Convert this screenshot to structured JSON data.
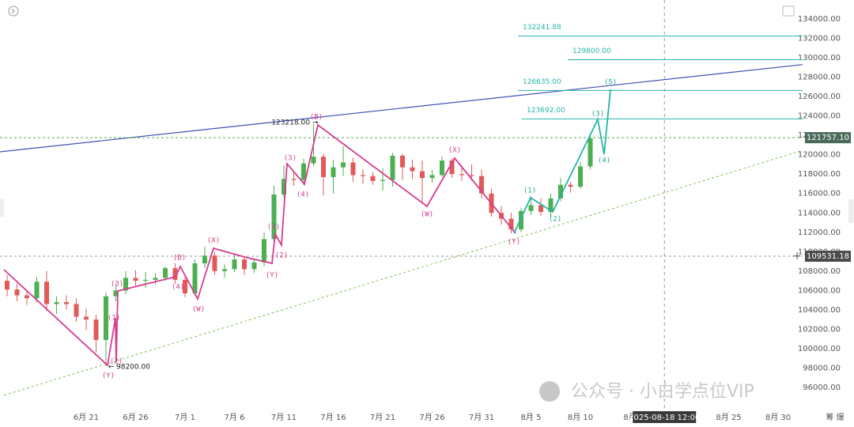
{
  "chart_data": {
    "type": "candlestick",
    "x": [
      12,
      13,
      14,
      15,
      16,
      17,
      18,
      19,
      20,
      21,
      22,
      23,
      24,
      25,
      26,
      27,
      28,
      29,
      30,
      31,
      32,
      33,
      34,
      35,
      36,
      37,
      38,
      39,
      40,
      41,
      42,
      43,
      44,
      45,
      46,
      47,
      48,
      49,
      50,
      51,
      52,
      53,
      54,
      55,
      56,
      57,
      58,
      59,
      60,
      61,
      62,
      63,
      64,
      65,
      66,
      67,
      68,
      69,
      70,
      71
    ],
    "open": [
      107000,
      106100,
      105500,
      105200,
      106900,
      104600,
      104800,
      104600,
      103300,
      103000,
      100900,
      105400,
      106000,
      107300,
      107000,
      107100,
      107300,
      108300,
      107100,
      105700,
      108800,
      109600,
      108000,
      108200,
      109200,
      108200,
      108900,
      111300,
      115900,
      117500,
      117400,
      119100,
      119800,
      117700,
      118700,
      119200,
      117900,
      117800,
      117300,
      117400,
      119900,
      118700,
      118300,
      117600,
      117900,
      119400,
      118000,
      117900,
      117800,
      116000,
      114000,
      113400,
      112300,
      114200,
      114800,
      114100,
      115500,
      116900,
      116700,
      118800
    ],
    "high": [
      107600,
      106700,
      106000,
      107400,
      108000,
      105400,
      105500,
      105200,
      104100,
      103500,
      105800,
      106700,
      108000,
      108100,
      107900,
      107800,
      108500,
      108800,
      107500,
      109200,
      110500,
      110000,
      108700,
      109700,
      109500,
      109300,
      112000,
      116800,
      118900,
      118200,
      119600,
      123218,
      120100,
      119500,
      120900,
      119700,
      118500,
      118200,
      118600,
      120200,
      120100,
      119500,
      119400,
      118400,
      119800,
      119600,
      118900,
      119000,
      118500,
      116500,
      114700,
      114000,
      114500,
      115700,
      115500,
      116000,
      117600,
      117200,
      119300,
      122000
    ],
    "low": [
      105400,
      104900,
      104500,
      104800,
      103900,
      103600,
      104000,
      102800,
      101900,
      99600,
      98200,
      104900,
      105600,
      106500,
      106300,
      106600,
      107000,
      106700,
      105300,
      105500,
      108300,
      107600,
      107300,
      107900,
      107600,
      107800,
      108500,
      110900,
      115600,
      116800,
      116900,
      118800,
      115800,
      116000,
      117800,
      117200,
      117000,
      116900,
      116300,
      116700,
      117400,
      117500,
      115000,
      117100,
      117700,
      117600,
      117300,
      117300,
      115500,
      113600,
      112800,
      111900,
      112000,
      113800,
      113700,
      113500,
      115200,
      116100,
      116500,
      118500
    ],
    "close": [
      106100,
      105500,
      105200,
      106900,
      104600,
      104800,
      104600,
      103300,
      103000,
      100900,
      105400,
      106000,
      107300,
      107000,
      107100,
      107300,
      108300,
      107100,
      105700,
      108800,
      109600,
      108000,
      108200,
      109200,
      108200,
      108900,
      111300,
      115900,
      117500,
      117400,
      119100,
      119800,
      117700,
      118700,
      119200,
      117900,
      117800,
      117300,
      117400,
      119900,
      118700,
      118300,
      117600,
      117900,
      119400,
      118000,
      117900,
      117800,
      116000,
      114000,
      113400,
      112300,
      114200,
      114800,
      114100,
      115500,
      116900,
      116700,
      118800,
      121700
    ],
    "up_color": "#4caf50",
    "down_color": "#e05a5a",
    "xlim": [
      11.28,
      92.48
    ],
    "ylim": [
      93550,
      135960
    ],
    "xticks": [
      {
        "value": 20,
        "label": "6月 21"
      },
      {
        "value": 25,
        "label": "6月 26"
      },
      {
        "value": 30,
        "label": "7月 1"
      },
      {
        "value": 35,
        "label": "7月 6"
      },
      {
        "value": 40,
        "label": "7月 11"
      },
      {
        "value": 45,
        "label": "7月 16"
      },
      {
        "value": 50,
        "label": "7月 21"
      },
      {
        "value": 55,
        "label": "7月 26"
      },
      {
        "value": 60,
        "label": "7月 31"
      },
      {
        "value": 65,
        "label": "8月 5"
      },
      {
        "value": 70,
        "label": "8月 10"
      },
      {
        "value": 75,
        "label": "8月"
      },
      {
        "value": 85,
        "label": "8月 25"
      },
      {
        "value": 90,
        "label": "8月 30"
      }
    ],
    "yticks": [
      {
        "value": 134000,
        "label": "134000.00"
      },
      {
        "value": 132000,
        "label": "132000.00"
      },
      {
        "value": 130000,
        "label": "130000.00"
      },
      {
        "value": 128000,
        "label": "128000.00"
      },
      {
        "value": 126000,
        "label": "126000.00"
      },
      {
        "value": 124000,
        "label": "124000.00"
      },
      {
        "value": 122000,
        "label": "122000.00"
      },
      {
        "value": 120000,
        "label": "120000.00"
      },
      {
        "value": 118000,
        "label": "118000.00"
      },
      {
        "value": 116000,
        "label": "116000.00"
      },
      {
        "value": 114000,
        "label": "114000.00"
      },
      {
        "value": 112000,
        "label": "112000.00"
      },
      {
        "value": 110000,
        "label": "110000.00"
      },
      {
        "value": 108000,
        "label": "108000.00"
      },
      {
        "value": 106000,
        "label": "106000.00"
      },
      {
        "value": 104000,
        "label": "104000.00"
      },
      {
        "value": 102000,
        "label": "102000.00"
      },
      {
        "value": 100000,
        "label": "100000.00"
      },
      {
        "value": 98000,
        "label": "98000.00"
      },
      {
        "value": 96000,
        "label": "96000.00"
      }
    ],
    "trend_lines": [
      {
        "x": [
          11.28,
          92.48
        ],
        "y": [
          120300,
          129300
        ],
        "color": "#3f51b5",
        "dashed": false
      },
      {
        "x": [
          11.7,
          92.48
        ],
        "y": [
          95200,
          120450
        ],
        "color": "#7cc35a",
        "dashed": true
      }
    ],
    "levels": [
      {
        "value": 121757.1,
        "label": "121757.10",
        "color": "#4caf50"
      },
      {
        "value": 109531.18,
        "label": "109531.18",
        "color": "#999999"
      }
    ],
    "crosshair": {
      "value": 78.5,
      "label": "2025-08-18 12:00"
    },
    "targets": [
      {
        "value": 132241.88,
        "label": "132241.88"
      },
      {
        "value": 129800.0,
        "label": "129800.00"
      },
      {
        "value": 126635.0,
        "label": "126635.00"
      },
      {
        "value": 123692.0,
        "label": "123692.00"
      }
    ],
    "target_color": "#26b5a8",
    "price_notes": [
      {
        "value": 123218,
        "label": "123218.00"
      },
      {
        "value": 98200,
        "label": "98200.00"
      }
    ],
    "wave_labels": {
      "pink": [
        "(Y)",
        "(2)",
        "(1)",
        "(3)",
        "(4)",
        "(B)",
        "(W)",
        "(X)",
        "(Y)",
        "(1)",
        "(2)",
        "(3)",
        "(4)",
        "(B)",
        "(W)",
        "(X)",
        "(Y)"
      ],
      "teal": [
        "(1)",
        "(2)",
        "(3)",
        "(4)",
        "(5)"
      ]
    }
  },
  "watermark": "公众号 · 小白学点位VIP",
  "corner_text": "筹 爆"
}
